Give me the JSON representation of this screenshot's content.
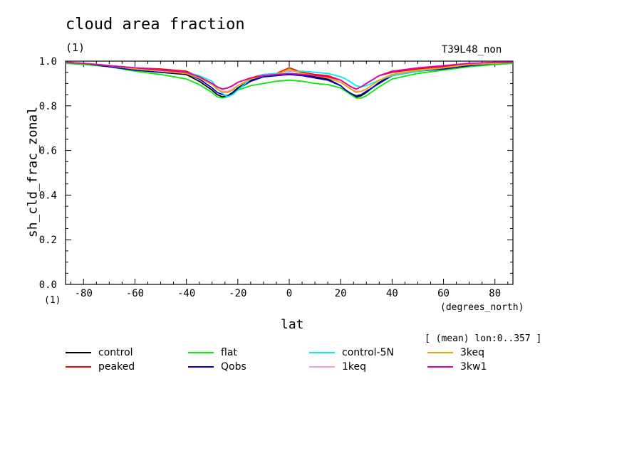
{
  "header": {
    "title": "cloud area fraction",
    "units_top": "(1)",
    "model": "T39L48_non"
  },
  "footer": {
    "units_bottom": "(1)",
    "mean_note": "[ (mean) lon:0..357 ]"
  },
  "chart_data": {
    "type": "line",
    "title": "cloud area fraction",
    "xlabel": "lat",
    "xunits": "(degrees_north)",
    "ylabel": "sh_cld_frac_zonal",
    "xlim": [
      -87,
      87
    ],
    "ylim": [
      0.0,
      1.0
    ],
    "xticks": [
      -80,
      -60,
      -40,
      -20,
      0,
      20,
      40,
      60,
      80
    ],
    "yticks": [
      0.0,
      0.2,
      0.4,
      0.6,
      0.8,
      1.0
    ],
    "ytick_labels": [
      "0.0",
      "0.2",
      "0.4",
      "0.6",
      "0.8",
      "1.0"
    ],
    "x": [
      -87,
      -80,
      -70,
      -60,
      -50,
      -40,
      -35,
      -30,
      -28,
      -26,
      -24,
      -22,
      -20,
      -15,
      -10,
      -5,
      0,
      5,
      10,
      15,
      20,
      22,
      24,
      26,
      28,
      30,
      35,
      40,
      50,
      60,
      70,
      80,
      87
    ],
    "series": [
      {
        "name": "control",
        "color": "#000000",
        "values": [
          0.995,
          0.99,
          0.98,
          0.965,
          0.95,
          0.94,
          0.91,
          0.87,
          0.85,
          0.84,
          0.845,
          0.86,
          0.88,
          0.915,
          0.93,
          0.935,
          0.945,
          0.94,
          0.93,
          0.92,
          0.89,
          0.87,
          0.85,
          0.84,
          0.845,
          0.86,
          0.905,
          0.935,
          0.955,
          0.97,
          0.985,
          0.99,
          0.995
        ]
      },
      {
        "name": "peaked",
        "color": "#ff0000",
        "values": [
          0.995,
          0.99,
          0.98,
          0.97,
          0.965,
          0.955,
          0.93,
          0.9,
          0.885,
          0.875,
          0.88,
          0.89,
          0.905,
          0.925,
          0.94,
          0.945,
          0.97,
          0.95,
          0.94,
          0.935,
          0.915,
          0.9,
          0.885,
          0.875,
          0.885,
          0.9,
          0.935,
          0.95,
          0.965,
          0.975,
          0.985,
          0.99,
          0.995
        ]
      },
      {
        "name": "flat",
        "color": "#00ee00",
        "values": [
          0.99,
          0.985,
          0.975,
          0.955,
          0.94,
          0.92,
          0.895,
          0.86,
          0.84,
          0.835,
          0.84,
          0.855,
          0.87,
          0.89,
          0.9,
          0.91,
          0.915,
          0.91,
          0.9,
          0.895,
          0.88,
          0.865,
          0.85,
          0.835,
          0.835,
          0.845,
          0.885,
          0.92,
          0.945,
          0.96,
          0.975,
          0.985,
          0.99
        ]
      },
      {
        "name": "Qobs",
        "color": "#0000cc",
        "values": [
          0.995,
          0.99,
          0.975,
          0.96,
          0.95,
          0.945,
          0.92,
          0.88,
          0.86,
          0.85,
          0.845,
          0.855,
          0.875,
          0.91,
          0.93,
          0.935,
          0.94,
          0.935,
          0.925,
          0.915,
          0.89,
          0.87,
          0.855,
          0.845,
          0.85,
          0.865,
          0.9,
          0.935,
          0.955,
          0.965,
          0.98,
          0.99,
          0.995
        ]
      },
      {
        "name": "control-5N",
        "color": "#00eeee",
        "values": [
          0.995,
          0.99,
          0.98,
          0.97,
          0.96,
          0.95,
          0.935,
          0.91,
          0.88,
          0.855,
          0.84,
          0.85,
          0.87,
          0.92,
          0.94,
          0.945,
          0.955,
          0.955,
          0.95,
          0.945,
          0.93,
          0.92,
          0.905,
          0.89,
          0.885,
          0.89,
          0.915,
          0.935,
          0.955,
          0.97,
          0.985,
          0.99,
          0.995
        ]
      },
      {
        "name": "1keq",
        "color": "#e7a0dc",
        "values": [
          0.995,
          0.99,
          0.98,
          0.965,
          0.955,
          0.945,
          0.925,
          0.895,
          0.875,
          0.865,
          0.865,
          0.875,
          0.89,
          0.92,
          0.935,
          0.94,
          0.96,
          0.945,
          0.935,
          0.925,
          0.905,
          0.89,
          0.875,
          0.865,
          0.865,
          0.875,
          0.915,
          0.94,
          0.96,
          0.97,
          0.985,
          0.99,
          0.995
        ]
      },
      {
        "name": "3keq",
        "color": "#e8a800",
        "values": [
          0.995,
          0.99,
          0.98,
          0.965,
          0.955,
          0.945,
          0.925,
          0.895,
          0.875,
          0.86,
          0.86,
          0.87,
          0.89,
          0.92,
          0.935,
          0.94,
          0.965,
          0.945,
          0.935,
          0.925,
          0.905,
          0.89,
          0.875,
          0.86,
          0.865,
          0.875,
          0.915,
          0.94,
          0.96,
          0.97,
          0.985,
          0.99,
          0.995
        ]
      },
      {
        "name": "3kw1",
        "color": "#e000b0",
        "values": [
          0.995,
          0.99,
          0.98,
          0.97,
          0.96,
          0.95,
          0.93,
          0.9,
          0.885,
          0.875,
          0.88,
          0.89,
          0.905,
          0.925,
          0.935,
          0.94,
          0.945,
          0.94,
          0.935,
          0.93,
          0.915,
          0.9,
          0.885,
          0.875,
          0.885,
          0.9,
          0.935,
          0.955,
          0.97,
          0.98,
          0.99,
          0.995,
          0.995
        ]
      }
    ]
  }
}
